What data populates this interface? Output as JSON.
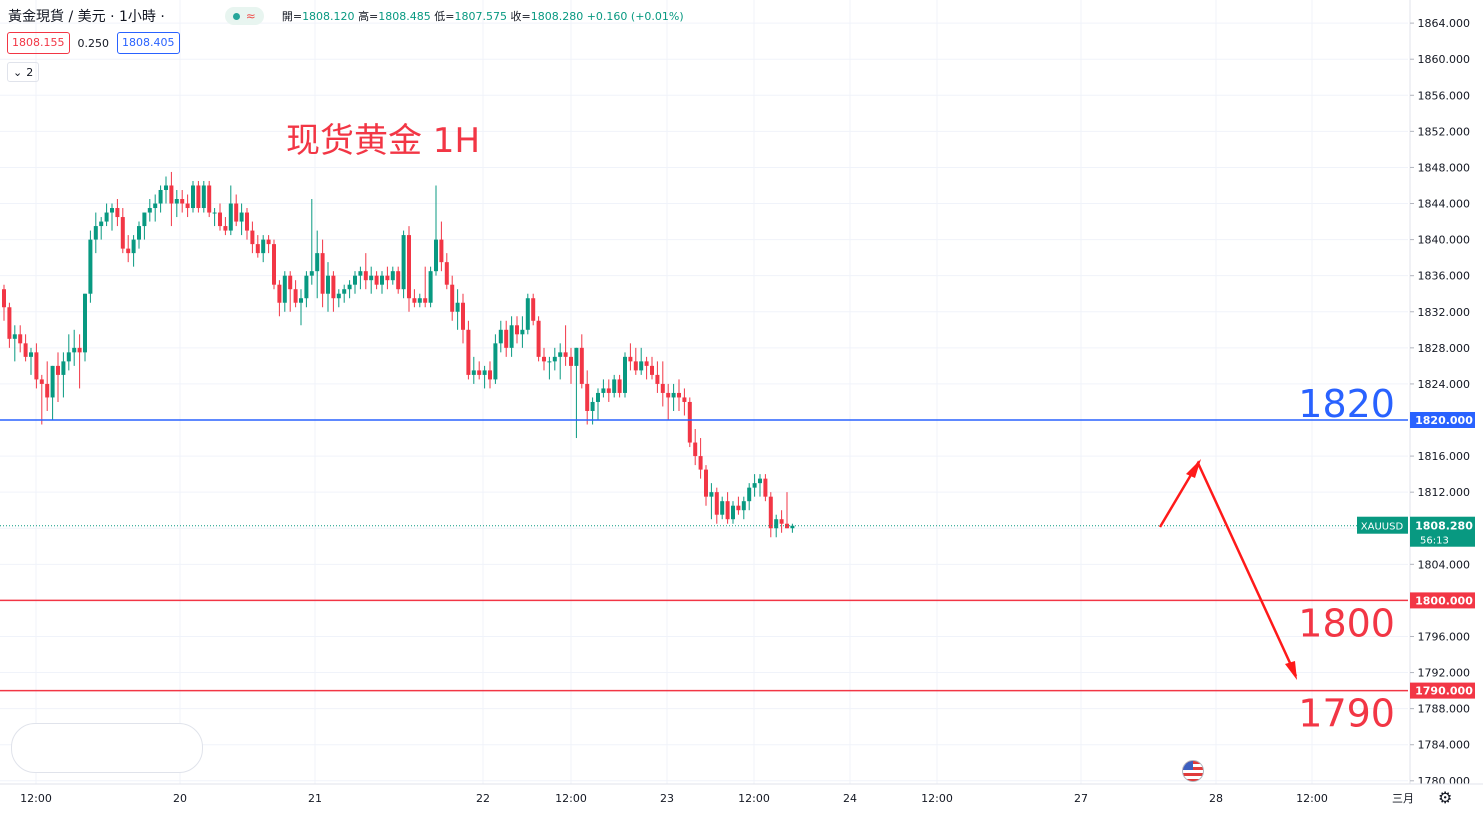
{
  "header": {
    "symbol": "黃金現貨 / 美元 · 1小時 ·",
    "live_glyph": "≈",
    "open_label": "開=",
    "open": "1808.120",
    "high_label": "高=",
    "high": "1808.485",
    "low_label": "低=",
    "low": "1807.575",
    "close_label": "收=",
    "close": "1808.280",
    "change": "+0.160 (+0.01%)"
  },
  "pricebox": {
    "sell": "1808.155",
    "spread": "0.250",
    "buy": "1808.405"
  },
  "indicators": {
    "count": "2"
  },
  "icons": {
    "gear": "⚙",
    "chevron": "⌄"
  },
  "colors": {
    "up": "#089981",
    "down": "#f23645",
    "blue": "#2962ff",
    "grid": "#f0f3fa"
  },
  "chart_data": {
    "type": "candlestick",
    "title": "现货黄金 1H",
    "symbol": "XAUUSD",
    "last_price": "1808.280",
    "countdown": "56:13",
    "ylim": [
      1779,
      1866
    ],
    "y_ticks": [
      "1864.000",
      "1860.000",
      "1856.000",
      "1852.000",
      "1848.000",
      "1844.000",
      "1840.000",
      "1836.000",
      "1832.000",
      "1828.000",
      "1824.000",
      "1820.000",
      "1816.000",
      "1812.000",
      "1808.000",
      "1804.000",
      "1800.000",
      "1796.000",
      "1792.000",
      "1788.000",
      "1784.000",
      "1780.000"
    ],
    "x_ticks": [
      "12:00",
      "20",
      "21",
      "22",
      "12:00",
      "23",
      "12:00",
      "24",
      "12:00",
      "27",
      "28",
      "12:00",
      "三月"
    ],
    "candles_ohlc": [
      [
        1834.5,
        1835.0,
        1831.0,
        1832.5
      ],
      [
        1832.5,
        1833.0,
        1828.0,
        1829.0
      ],
      [
        1829.0,
        1830.5,
        1826.5,
        1829.5
      ],
      [
        1829.5,
        1830.5,
        1827.5,
        1828.5
      ],
      [
        1828.5,
        1829.5,
        1826.5,
        1827.0
      ],
      [
        1827.0,
        1828.0,
        1825.0,
        1827.5
      ],
      [
        1827.5,
        1828.5,
        1823.5,
        1824.5
      ],
      [
        1824.5,
        1825.0,
        1819.5,
        1824.0
      ],
      [
        1824.0,
        1826.5,
        1821.0,
        1822.5
      ],
      [
        1822.5,
        1826.0,
        1820.0,
        1826.0
      ],
      [
        1826.0,
        1827.5,
        1822.0,
        1825.0
      ],
      [
        1825.0,
        1827.5,
        1822.5,
        1826.5
      ],
      [
        1826.5,
        1829.5,
        1825.5,
        1827.5
      ],
      [
        1827.5,
        1830.0,
        1826.0,
        1828.0
      ],
      [
        1828.0,
        1829.5,
        1823.5,
        1827.5
      ],
      [
        1827.5,
        1834.0,
        1826.5,
        1834.0
      ],
      [
        1834.0,
        1841.0,
        1833.0,
        1840.0
      ],
      [
        1840.0,
        1843.0,
        1838.5,
        1841.5
      ],
      [
        1841.5,
        1842.5,
        1840.0,
        1842.0
      ],
      [
        1842.0,
        1844.0,
        1841.5,
        1843.0
      ],
      [
        1843.0,
        1844.0,
        1841.0,
        1843.5
      ],
      [
        1843.5,
        1844.5,
        1841.5,
        1842.5
      ],
      [
        1842.5,
        1843.5,
        1838.5,
        1839.0
      ],
      [
        1839.0,
        1840.5,
        1837.5,
        1838.5
      ],
      [
        1838.5,
        1840.5,
        1837.0,
        1840.0
      ],
      [
        1840.0,
        1842.0,
        1839.0,
        1841.5
      ],
      [
        1841.5,
        1843.0,
        1840.0,
        1843.0
      ],
      [
        1843.0,
        1844.5,
        1842.0,
        1843.5
      ],
      [
        1843.5,
        1845.0,
        1842.0,
        1844.0
      ],
      [
        1844.0,
        1846.0,
        1843.0,
        1845.5
      ],
      [
        1845.5,
        1847.0,
        1844.0,
        1846.0
      ],
      [
        1846.0,
        1847.5,
        1841.5,
        1844.0
      ],
      [
        1844.0,
        1845.5,
        1842.5,
        1844.5
      ],
      [
        1844.5,
        1845.5,
        1843.0,
        1844.0
      ],
      [
        1844.0,
        1845.0,
        1842.5,
        1843.5
      ],
      [
        1843.5,
        1846.5,
        1843.0,
        1846.0
      ],
      [
        1846.0,
        1846.5,
        1843.0,
        1843.5
      ],
      [
        1843.5,
        1846.5,
        1843.0,
        1846.0
      ],
      [
        1846.0,
        1846.5,
        1842.5,
        1843.0
      ],
      [
        1843.0,
        1843.5,
        1841.5,
        1843.0
      ],
      [
        1843.0,
        1844.0,
        1841.0,
        1841.5
      ],
      [
        1841.5,
        1842.5,
        1840.5,
        1841.0
      ],
      [
        1841.0,
        1846.0,
        1840.5,
        1844.0
      ],
      [
        1844.0,
        1845.0,
        1841.5,
        1842.0
      ],
      [
        1842.0,
        1844.0,
        1840.5,
        1843.0
      ],
      [
        1843.0,
        1843.5,
        1840.0,
        1841.0
      ],
      [
        1841.0,
        1842.0,
        1838.5,
        1839.5
      ],
      [
        1839.5,
        1840.5,
        1838.0,
        1838.5
      ],
      [
        1838.5,
        1840.5,
        1837.5,
        1840.0
      ],
      [
        1840.0,
        1840.5,
        1838.5,
        1839.5
      ],
      [
        1839.5,
        1840.0,
        1834.5,
        1835.0
      ],
      [
        1835.0,
        1835.5,
        1831.5,
        1833.0
      ],
      [
        1833.0,
        1836.5,
        1832.0,
        1836.0
      ],
      [
        1836.0,
        1836.5,
        1832.0,
        1834.5
      ],
      [
        1834.5,
        1835.5,
        1832.5,
        1833.0
      ],
      [
        1833.0,
        1834.5,
        1830.5,
        1833.5
      ],
      [
        1833.5,
        1836.5,
        1832.5,
        1836.0
      ],
      [
        1836.0,
        1844.5,
        1835.0,
        1836.5
      ],
      [
        1836.5,
        1841.0,
        1833.5,
        1838.5
      ],
      [
        1838.5,
        1840.0,
        1832.5,
        1834.0
      ],
      [
        1834.0,
        1837.5,
        1832.0,
        1836.0
      ],
      [
        1836.0,
        1836.5,
        1832.0,
        1833.5
      ],
      [
        1833.5,
        1834.5,
        1832.5,
        1834.0
      ],
      [
        1834.0,
        1835.0,
        1833.0,
        1834.5
      ],
      [
        1834.5,
        1835.5,
        1833.5,
        1835.0
      ],
      [
        1835.0,
        1836.5,
        1834.0,
        1836.0
      ],
      [
        1836.0,
        1837.0,
        1834.5,
        1836.5
      ],
      [
        1836.5,
        1838.5,
        1834.5,
        1835.5
      ],
      [
        1835.5,
        1837.0,
        1834.0,
        1836.0
      ],
      [
        1836.0,
        1836.5,
        1834.5,
        1835.0
      ],
      [
        1835.0,
        1836.5,
        1834.0,
        1836.0
      ],
      [
        1836.0,
        1837.0,
        1834.5,
        1835.5
      ],
      [
        1835.5,
        1837.0,
        1835.0,
        1836.5
      ],
      [
        1836.5,
        1837.0,
        1834.0,
        1834.5
      ],
      [
        1834.5,
        1841.0,
        1833.5,
        1840.5
      ],
      [
        1840.5,
        1841.5,
        1832.0,
        1833.5
      ],
      [
        1833.5,
        1834.5,
        1832.5,
        1833.0
      ],
      [
        1833.0,
        1834.0,
        1832.5,
        1833.5
      ],
      [
        1833.5,
        1837.0,
        1832.5,
        1833.0
      ],
      [
        1833.0,
        1837.0,
        1832.5,
        1836.5
      ],
      [
        1836.5,
        1846.0,
        1836.0,
        1840.0
      ],
      [
        1840.0,
        1842.0,
        1836.5,
        1837.5
      ],
      [
        1837.5,
        1838.5,
        1834.5,
        1835.0
      ],
      [
        1835.0,
        1836.0,
        1831.0,
        1832.0
      ],
      [
        1832.0,
        1834.5,
        1830.0,
        1833.0
      ],
      [
        1833.0,
        1834.0,
        1828.5,
        1830.0
      ],
      [
        1830.0,
        1831.0,
        1824.5,
        1825.0
      ],
      [
        1825.0,
        1827.0,
        1824.0,
        1825.5
      ],
      [
        1825.5,
        1826.5,
        1824.5,
        1825.0
      ],
      [
        1825.0,
        1826.0,
        1823.5,
        1825.5
      ],
      [
        1825.5,
        1826.5,
        1823.5,
        1824.5
      ],
      [
        1824.5,
        1829.5,
        1824.0,
        1828.5
      ],
      [
        1828.5,
        1831.0,
        1827.5,
        1830.0
      ],
      [
        1830.0,
        1831.0,
        1827.0,
        1828.0
      ],
      [
        1828.0,
        1831.5,
        1827.0,
        1830.5
      ],
      [
        1830.5,
        1831.5,
        1828.5,
        1829.5
      ],
      [
        1829.5,
        1831.5,
        1828.0,
        1830.0
      ],
      [
        1830.0,
        1834.0,
        1829.5,
        1833.5
      ],
      [
        1833.5,
        1834.0,
        1830.5,
        1831.0
      ],
      [
        1831.0,
        1831.5,
        1826.5,
        1827.0
      ],
      [
        1827.0,
        1828.0,
        1825.5,
        1826.5
      ],
      [
        1826.5,
        1827.0,
        1824.5,
        1826.5
      ],
      [
        1826.5,
        1828.0,
        1825.5,
        1827.0
      ],
      [
        1827.0,
        1828.5,
        1824.5,
        1827.5
      ],
      [
        1827.5,
        1830.5,
        1826.0,
        1827.0
      ],
      [
        1827.0,
        1828.0,
        1824.0,
        1826.0
      ],
      [
        1826.0,
        1828.0,
        1818.0,
        1828.0
      ],
      [
        1828.0,
        1829.5,
        1823.5,
        1824.0
      ],
      [
        1824.0,
        1825.5,
        1819.5,
        1821.0
      ],
      [
        1821.0,
        1822.5,
        1819.5,
        1822.0
      ],
      [
        1822.0,
        1823.5,
        1820.0,
        1823.0
      ],
      [
        1823.0,
        1824.5,
        1822.5,
        1823.5
      ],
      [
        1823.5,
        1824.5,
        1822.0,
        1823.0
      ],
      [
        1823.0,
        1825.0,
        1822.5,
        1824.5
      ],
      [
        1824.5,
        1825.0,
        1822.5,
        1823.0
      ],
      [
        1823.0,
        1827.5,
        1822.5,
        1827.0
      ],
      [
        1827.0,
        1828.5,
        1825.5,
        1826.5
      ],
      [
        1826.5,
        1828.0,
        1825.0,
        1825.5
      ],
      [
        1825.5,
        1828.0,
        1825.0,
        1826.5
      ],
      [
        1826.5,
        1827.0,
        1824.5,
        1826.0
      ],
      [
        1826.0,
        1827.0,
        1824.5,
        1825.0
      ],
      [
        1825.0,
        1826.5,
        1823.0,
        1824.0
      ],
      [
        1824.0,
        1826.5,
        1821.5,
        1823.0
      ],
      [
        1823.0,
        1824.0,
        1820.0,
        1822.5
      ],
      [
        1822.5,
        1824.0,
        1821.0,
        1823.0
      ],
      [
        1823.0,
        1824.5,
        1821.0,
        1822.5
      ],
      [
        1822.5,
        1823.5,
        1820.5,
        1822.0
      ],
      [
        1822.0,
        1822.5,
        1817.0,
        1817.5
      ],
      [
        1817.5,
        1819.0,
        1815.0,
        1816.0
      ],
      [
        1816.0,
        1818.0,
        1813.5,
        1814.5
      ],
      [
        1814.5,
        1815.0,
        1810.5,
        1811.5
      ],
      [
        1811.5,
        1813.0,
        1809.0,
        1812.0
      ],
      [
        1812.0,
        1812.5,
        1808.5,
        1809.5
      ],
      [
        1809.5,
        1811.5,
        1809.0,
        1811.0
      ],
      [
        1811.0,
        1812.0,
        1808.5,
        1809.0
      ],
      [
        1809.0,
        1811.0,
        1808.5,
        1810.5
      ],
      [
        1810.5,
        1811.5,
        1809.5,
        1810.0
      ],
      [
        1810.0,
        1811.5,
        1809.0,
        1811.0
      ],
      [
        1811.0,
        1813.0,
        1810.0,
        1812.5
      ],
      [
        1812.5,
        1814.0,
        1811.5,
        1813.0
      ],
      [
        1813.0,
        1814.0,
        1811.5,
        1813.5
      ],
      [
        1813.5,
        1814.0,
        1811.0,
        1811.5
      ],
      [
        1811.5,
        1812.0,
        1807.0,
        1808.0
      ],
      [
        1808.0,
        1809.5,
        1807.0,
        1809.0
      ],
      [
        1809.0,
        1810.0,
        1807.5,
        1808.5
      ],
      [
        1808.5,
        1812.0,
        1808.0,
        1808.0
      ],
      [
        1808.0,
        1808.5,
        1807.5,
        1808.28
      ]
    ],
    "horizontal_lines": [
      {
        "price": 1820,
        "label": "1820",
        "tag": "1820.000",
        "color": "#2962ff"
      },
      {
        "price": 1800,
        "label": "1800",
        "tag": "1800.000",
        "color": "#f23645"
      },
      {
        "price": 1790,
        "label": "1790",
        "tag": "1790.000",
        "color": "#f23645"
      }
    ],
    "forecast_path": [
      {
        "t": "27 15:00",
        "price": 1808.3
      },
      {
        "t": "27 20:00",
        "price": 1816.5
      },
      {
        "t": "28 10:00",
        "price": 1790.3
      }
    ]
  }
}
